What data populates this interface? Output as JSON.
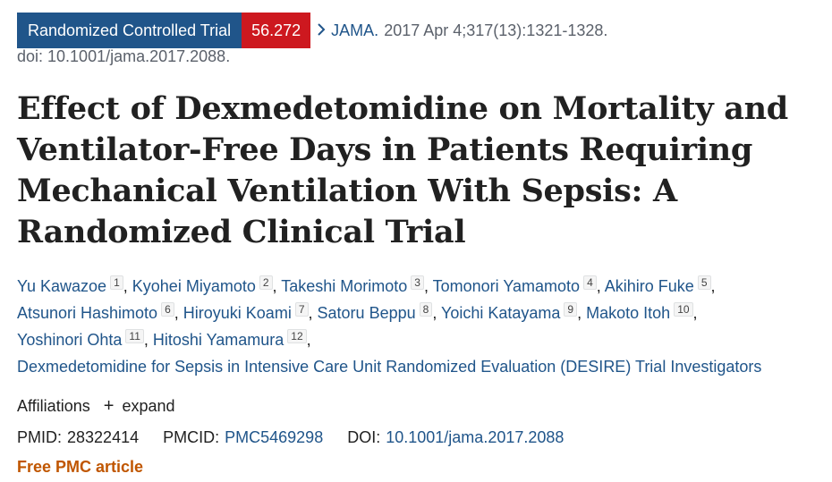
{
  "header": {
    "publication_type": "Randomized Controlled Trial",
    "score": "56.272",
    "chevron_icon": "chevron-right-icon",
    "journal": "JAMA.",
    "citation": "2017 Apr 4;317(13):1321-1328.",
    "doi_line": "doi: 10.1001/jama.2017.2088.",
    "colors": {
      "publication_type_bg": "#20558a",
      "score_bg": "#cd181f",
      "link": "#20558a",
      "free_pmc": "#c05600"
    }
  },
  "title": "Effect of Dexmedetomidine on Mortality and Ventilator-Free Days in Patients Requiring Mechanical Ventilation With Sepsis: A Randomized Clinical Trial",
  "authors": [
    {
      "name": "Yu Kawazoe",
      "aff": "1"
    },
    {
      "name": "Kyohei Miyamoto",
      "aff": "2"
    },
    {
      "name": "Takeshi Morimoto",
      "aff": "3"
    },
    {
      "name": "Tomonori Yamamoto",
      "aff": "4"
    },
    {
      "name": "Akihiro Fuke",
      "aff": "5"
    },
    {
      "name": "Atsunori Hashimoto",
      "aff": "6"
    },
    {
      "name": "Hiroyuki Koami",
      "aff": "7"
    },
    {
      "name": "Satoru Beppu",
      "aff": "8"
    },
    {
      "name": "Yoichi Katayama",
      "aff": "9"
    },
    {
      "name": "Makoto Itoh",
      "aff": "10"
    },
    {
      "name": "Yoshinori Ohta",
      "aff": "11"
    },
    {
      "name": "Hitoshi Yamamura",
      "aff": "12"
    }
  ],
  "collective_author": "Dexmedetomidine for Sepsis in Intensive Care Unit Randomized Evaluation (DESIRE) Trial Investigators",
  "affiliations": {
    "label": "Affiliations",
    "plus_icon": "plus-icon",
    "expand_label": "expand"
  },
  "identifiers": {
    "pmid_label": "PMID:",
    "pmid": "28322414",
    "pmcid_label": "PMCID:",
    "pmcid": "PMC5469298",
    "doi_label": "DOI:",
    "doi": "10.1001/jama.2017.2088"
  },
  "free_pmc": "Free PMC article"
}
